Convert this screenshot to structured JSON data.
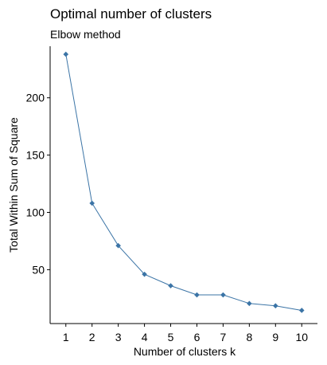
{
  "chart_data": {
    "type": "line",
    "title": "Optimal number of clusters",
    "subtitle": "Elbow method",
    "xlabel": "Number of clusters k",
    "ylabel": "Total Within Sum of Square",
    "x": [
      1,
      2,
      3,
      4,
      5,
      6,
      7,
      8,
      9,
      10
    ],
    "x_tick_labels": [
      "1",
      "2",
      "3",
      "4",
      "5",
      "6",
      "7",
      "8",
      "9",
      "10"
    ],
    "series": [
      {
        "values": [
          238,
          108,
          71,
          46,
          36,
          28,
          28,
          20.5,
          18.5,
          14.5
        ]
      }
    ],
    "y_ticks": [
      50,
      100,
      150,
      200
    ],
    "y_tick_labels": [
      "50",
      "100",
      "150",
      "200"
    ],
    "xlim": [
      0.4,
      10.6
    ],
    "ylim": [
      3,
      245
    ],
    "grid": false,
    "line_color": "#3b74a6",
    "marker": "diamond"
  }
}
